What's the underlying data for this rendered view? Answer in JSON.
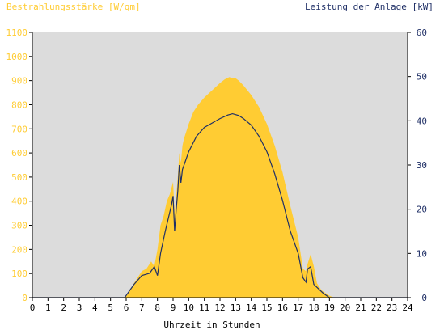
{
  "chart_data": {
    "type": "area",
    "title_left": "Bestrahlungsstärke [W/qm]",
    "title_right": "Leistung der Anlage [kW]",
    "xlabel": "Uhrzeit in Stunden",
    "x_ticks": [
      "0",
      "1",
      "2",
      "3",
      "4",
      "5",
      "6",
      "7",
      "8",
      "9",
      "10",
      "11",
      "12",
      "13",
      "14",
      "15",
      "16",
      "17",
      "18",
      "19",
      "20",
      "21",
      "22",
      "23",
      "24"
    ],
    "y_left_ticks": [
      "0",
      "100",
      "200",
      "300",
      "400",
      "500",
      "600",
      "700",
      "800",
      "900",
      "1000",
      "1100"
    ],
    "y_right_ticks": [
      "0",
      "10",
      "20",
      "30",
      "40",
      "50",
      "60"
    ],
    "xlim": [
      0,
      24
    ],
    "ylim_left": [
      0,
      1100
    ],
    "ylim_right": [
      0,
      60
    ],
    "grid": false,
    "colors": {
      "plot_bg": "#dcdcdc",
      "irradiance": "#ffcc33",
      "power": "#1f2f66",
      "left_axis_text": "#ffcc33",
      "right_axis_text": "#1f2f66",
      "axis": "#000000"
    },
    "series": [
      {
        "axis": "left",
        "kind": "area",
        "x": [
          0,
          5.9,
          6.0,
          6.2,
          6.5,
          6.8,
          7.0,
          7.3,
          7.6,
          7.8,
          8.0,
          8.2,
          8.4,
          8.6,
          8.8,
          9.0,
          9.1,
          9.2,
          9.3,
          9.4,
          9.5,
          9.6,
          9.7,
          9.8,
          10.0,
          10.3,
          10.6,
          11.0,
          11.5,
          12.0,
          12.3,
          12.6,
          12.8,
          13.0,
          13.2,
          13.5,
          14.0,
          14.5,
          15.0,
          15.5,
          16.0,
          16.5,
          17.0,
          17.3,
          17.5,
          17.6,
          17.8,
          18.0,
          18.2,
          18.5,
          19.0,
          19.3,
          24
        ],
        "y": [
          0,
          0,
          10,
          30,
          60,
          90,
          110,
          120,
          150,
          130,
          200,
          300,
          340,
          400,
          430,
          480,
          350,
          420,
          500,
          600,
          560,
          630,
          660,
          680,
          720,
          770,
          800,
          830,
          860,
          890,
          905,
          915,
          910,
          910,
          900,
          880,
          840,
          790,
          720,
          630,
          520,
          380,
          250,
          120,
          110,
          140,
          180,
          130,
          60,
          30,
          8,
          0,
          0
        ]
      },
      {
        "axis": "right",
        "kind": "line",
        "x": [
          0,
          5.9,
          6.0,
          6.5,
          7.0,
          7.5,
          7.8,
          8.0,
          8.2,
          8.5,
          8.7,
          8.9,
          9.0,
          9.1,
          9.2,
          9.3,
          9.4,
          9.5,
          9.6,
          9.8,
          10.0,
          10.5,
          11.0,
          11.5,
          12.0,
          12.5,
          12.8,
          13.0,
          13.2,
          13.5,
          14.0,
          14.5,
          15.0,
          15.5,
          16.0,
          16.5,
          17.0,
          17.3,
          17.5,
          17.6,
          17.8,
          18.0,
          18.3,
          18.6,
          19.0,
          24
        ],
        "y": [
          0,
          0,
          0.5,
          3,
          5,
          5.5,
          7,
          5,
          10,
          15,
          18,
          21,
          23,
          15,
          20,
          24,
          30,
          26,
          29,
          31,
          33,
          36.5,
          38.5,
          39.5,
          40.5,
          41.3,
          41.6,
          41.4,
          41.2,
          40.5,
          39,
          36.5,
          33,
          28,
          22,
          15,
          10,
          4.5,
          3.5,
          6.5,
          7,
          3,
          2,
          1,
          0,
          0
        ]
      }
    ]
  }
}
